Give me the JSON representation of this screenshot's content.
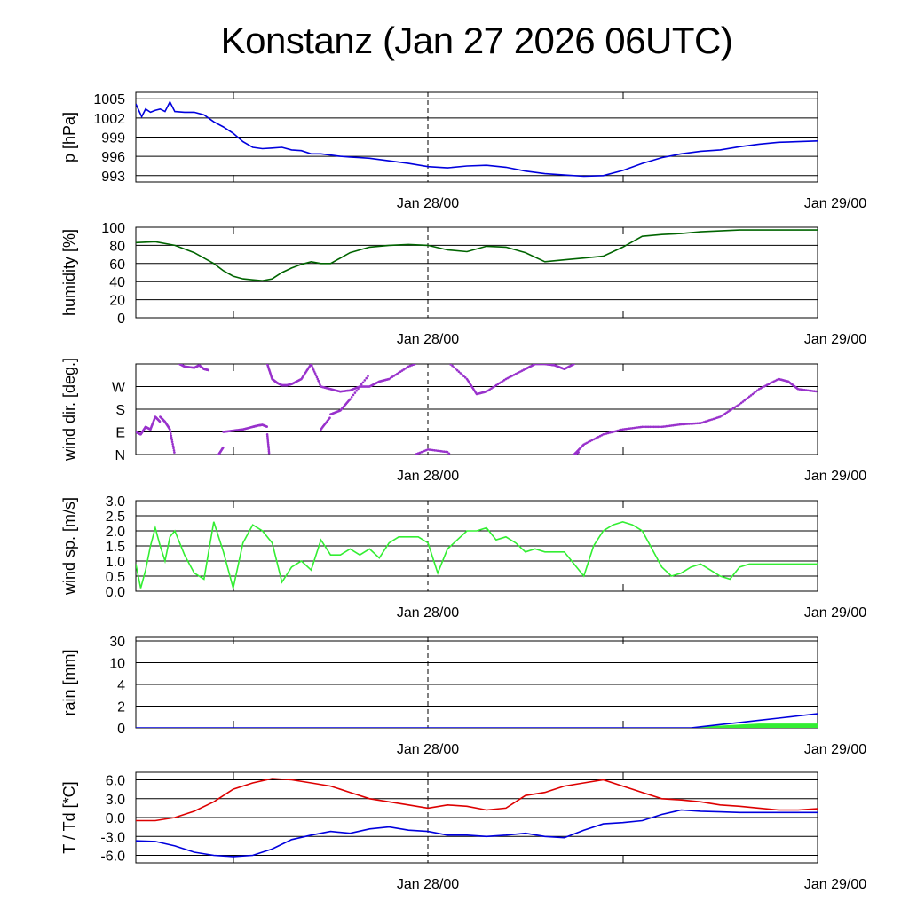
{
  "title": "Konstanz (Jan 27 2026 06UTC)",
  "chart_data": [
    {
      "type": "line",
      "name": "pressure",
      "ylabel": "p [hPa]",
      "ylim": [
        992,
        1006
      ],
      "yticks": [
        993,
        996,
        999,
        1002,
        1005
      ],
      "ytick_labels": [
        "993",
        "996",
        "999",
        "1002",
        "1005"
      ],
      "x_day_labels": [
        "Jan 28/00",
        "Jan 29/00"
      ],
      "x_hours": [
        0,
        0.3,
        0.6,
        1,
        1.5,
        2,
        2.5,
        3,
        3.5,
        4,
        5,
        6,
        7,
        8,
        9,
        10,
        11,
        12,
        13,
        14,
        15,
        16,
        17,
        18,
        19,
        20,
        21,
        22,
        23,
        24,
        26,
        28,
        30,
        32,
        34,
        36,
        38,
        40,
        42,
        44,
        46,
        48,
        50,
        52,
        54,
        56,
        58,
        60,
        62,
        64,
        66,
        68,
        70
      ],
      "series": [
        {
          "name": "p",
          "color": "#0000dd",
          "values": [
            1004.2,
            1003.2,
            1002.2,
            1003.4,
            1002.9,
            1003.2,
            1003.4,
            1003.0,
            1004.5,
            1003.0,
            1002.9,
            1002.9,
            1002.5,
            1001.4,
            1000.6,
            999.6,
            998.3,
            997.4,
            997.2,
            997.3,
            997.4,
            997.0,
            996.9,
            996.4,
            996.4,
            996.2,
            996.0,
            995.9,
            995.8,
            995.7,
            995.3,
            994.9,
            994.4,
            994.2,
            994.5,
            994.6,
            994.3,
            993.7,
            993.3,
            993.1,
            992.9,
            993.0,
            993.8,
            994.9,
            995.8,
            996.4,
            996.8,
            997.0,
            997.5,
            997.9,
            998.2,
            998.3,
            998.4
          ]
        }
      ]
    },
    {
      "type": "line",
      "name": "humidity",
      "ylabel": "humidity [%]",
      "ylim": [
        0,
        100
      ],
      "yticks": [
        0,
        20,
        40,
        60,
        80,
        100
      ],
      "ytick_labels": [
        "0",
        "20",
        "40",
        "60",
        "80",
        "100"
      ],
      "x_day_labels": [
        "Jan 28/00",
        "Jan 29/00"
      ],
      "x_hours": [
        0,
        2,
        4,
        6,
        8,
        9,
        10,
        11,
        12,
        13,
        14,
        15,
        16,
        17,
        18,
        19,
        20,
        22,
        24,
        26,
        28,
        30,
        32,
        34,
        36,
        38,
        40,
        42,
        44,
        46,
        48,
        50,
        52,
        54,
        56,
        58,
        60,
        62,
        64,
        66,
        68,
        70
      ],
      "series": [
        {
          "name": "rh",
          "color": "#006400",
          "values": [
            83,
            84,
            80,
            72,
            60,
            52,
            46,
            43,
            42,
            41,
            43,
            50,
            55,
            59,
            62,
            60,
            60,
            72,
            78,
            80,
            81,
            80,
            75,
            73,
            79,
            78,
            72,
            62,
            64,
            66,
            68,
            78,
            90,
            92,
            93,
            95,
            96,
            97,
            97,
            97,
            97,
            97
          ]
        }
      ]
    },
    {
      "type": "scatter",
      "name": "wind-direction",
      "ylabel": "wind dir. [deg.]",
      "ylim": [
        0,
        360
      ],
      "yticks": [
        0,
        90,
        180,
        270
      ],
      "ytick_labels": [
        "N",
        "E",
        "S",
        "W"
      ],
      "x_day_labels": [
        "Jan 28/00",
        "Jan 29/00"
      ],
      "segments": [
        {
          "x": [
            0,
            0.5,
            1,
            1.5,
            2,
            2.5
          ],
          "y": [
            90,
            80,
            110,
            100,
            150,
            130
          ]
        },
        {
          "x": [
            2.5,
            3,
            3.5,
            4
          ],
          "y": [
            150,
            130,
            100,
            0
          ]
        },
        {
          "x": [
            4.5,
            5,
            6,
            6.5,
            7,
            7.5
          ],
          "y": [
            360,
            350,
            345,
            355,
            340,
            335
          ]
        },
        {
          "x": [
            8.5,
            9
          ],
          "y": [
            0,
            30
          ]
        },
        {
          "x": [
            9,
            10,
            11,
            12,
            12.5,
            13,
            13.5
          ],
          "y": [
            90,
            95,
            100,
            110,
            115,
            118,
            110
          ]
        },
        {
          "x": [
            13.5,
            13.7
          ],
          "y": [
            80,
            0
          ]
        },
        {
          "x": [
            13.5,
            14,
            14.5,
            15,
            15.5,
            16,
            17,
            18,
            19,
            20,
            21,
            22,
            23,
            24,
            25,
            26,
            28,
            30,
            32,
            34,
            35,
            36,
            38,
            40,
            41,
            42,
            43,
            44,
            45,
            45.5
          ],
          "y": [
            360,
            300,
            285,
            275,
            275,
            280,
            300,
            360,
            270,
            260,
            250,
            255,
            270,
            270,
            290,
            300,
            350,
            380,
            370,
            300,
            240,
            250,
            300,
            340,
            360,
            360,
            355,
            340,
            360,
            370
          ]
        },
        {
          "x": [
            19,
            20
          ],
          "y": [
            100,
            150
          ]
        },
        {
          "x": [
            20,
            21,
            22,
            24
          ],
          "y": [
            160,
            175,
            220,
            320
          ]
        },
        {
          "x": [
            45,
            46,
            48,
            50,
            52,
            54,
            56,
            58,
            60,
            62,
            64,
            66,
            67,
            68,
            70
          ],
          "y": [
            0,
            40,
            80,
            100,
            110,
            110,
            120,
            125,
            150,
            200,
            260,
            300,
            290,
            260,
            250
          ]
        }
      ],
      "series": [
        {
          "name": "dd",
          "color": "#9932cc"
        }
      ]
    },
    {
      "type": "line",
      "name": "wind-speed",
      "ylabel": "wind sp. [m/s]",
      "ylim": [
        0,
        3
      ],
      "yticks": [
        0,
        0.5,
        1.0,
        1.5,
        2.0,
        2.5,
        3.0
      ],
      "ytick_labels": [
        "0.0",
        "0.5",
        "1.0",
        "1.5",
        "2.0",
        "2.5",
        "3.0"
      ],
      "x_day_labels": [
        "Jan 28/00",
        "Jan 29/00"
      ],
      "x_hours": [
        0,
        0.5,
        1,
        1.5,
        2,
        2.5,
        3,
        3.5,
        4,
        5,
        6,
        7,
        8,
        9,
        10,
        11,
        12,
        13,
        14,
        15,
        16,
        17,
        18,
        19,
        20,
        21,
        22,
        23,
        24,
        25,
        26,
        27,
        28,
        29,
        30,
        31,
        32,
        33,
        34,
        35,
        36,
        37,
        38,
        39,
        40,
        41,
        42,
        43,
        44,
        45,
        46,
        47,
        48,
        49,
        50,
        51,
        52,
        53,
        54,
        55,
        56,
        57,
        58,
        59,
        60,
        61,
        62,
        63,
        64,
        65,
        66,
        67,
        68,
        69,
        70
      ],
      "series": [
        {
          "name": "ff",
          "color": "#33ee33",
          "values": [
            0.9,
            0.1,
            0.7,
            1.5,
            2.1,
            1.5,
            1.0,
            1.8,
            2.0,
            1.2,
            0.6,
            0.4,
            2.3,
            1.3,
            0.1,
            1.6,
            2.2,
            2.0,
            1.6,
            0.3,
            0.8,
            1.0,
            0.7,
            1.7,
            1.2,
            1.2,
            1.4,
            1.2,
            1.4,
            1.1,
            1.6,
            1.8,
            1.8,
            1.8,
            1.6,
            0.6,
            1.4,
            1.7,
            2.0,
            2.0,
            2.1,
            1.7,
            1.8,
            1.6,
            1.3,
            1.4,
            1.3,
            1.3,
            1.3,
            0.9,
            0.5,
            1.5,
            2.0,
            2.2,
            2.3,
            2.2,
            2.0,
            1.4,
            0.8,
            0.5,
            0.6,
            0.8,
            0.9,
            0.7,
            0.5,
            0.4,
            0.8,
            0.9,
            0.9,
            0.9,
            0.9,
            0.9,
            0.9,
            0.9,
            0.9
          ]
        }
      ]
    },
    {
      "type": "area",
      "name": "rain",
      "ylabel": "rain [mm]",
      "ylim": [
        0,
        30
      ],
      "yticks": [
        0,
        2,
        4,
        10,
        30
      ],
      "ytick_labels": [
        "0",
        "2",
        "4",
        "10",
        "30"
      ],
      "x_day_labels": [
        "Jan 28/00",
        "Jan 29/00"
      ],
      "x_hours": [
        0,
        57,
        58,
        60,
        62,
        64,
        66,
        68,
        70
      ],
      "series": [
        {
          "name": "accumulated",
          "color": "#0000dd",
          "values": [
            0,
            0,
            0.1,
            0.3,
            0.5,
            0.7,
            0.9,
            1.1,
            1.3
          ]
        },
        {
          "name": "period",
          "color": "#33ee33",
          "values": [
            0,
            0,
            0.1,
            0.2,
            0.3,
            0.4,
            0.4,
            0.4,
            0.4
          ]
        }
      ]
    },
    {
      "type": "line",
      "name": "temperature",
      "ylabel": "T / Td [*C]",
      "ylim": [
        -7.2,
        7.2
      ],
      "yticks": [
        -6,
        -3,
        0,
        3,
        6
      ],
      "ytick_labels": [
        "-6.0",
        "-3.0",
        "0.0",
        "3.0",
        "6.0"
      ],
      "x_day_labels": [
        "Jan 28/00",
        "Jan 29/00"
      ],
      "x_hours": [
        0,
        2,
        4,
        6,
        8,
        10,
        12,
        14,
        16,
        18,
        20,
        22,
        24,
        26,
        28,
        30,
        32,
        34,
        36,
        38,
        40,
        42,
        44,
        46,
        48,
        50,
        52,
        54,
        56,
        58,
        60,
        62,
        64,
        66,
        68,
        70
      ],
      "series": [
        {
          "name": "T",
          "color": "#dd0000",
          "values": [
            -0.5,
            -0.5,
            0,
            1.0,
            2.5,
            4.5,
            5.5,
            6.2,
            6.0,
            5.5,
            5.0,
            4.0,
            3.0,
            2.5,
            2.0,
            1.5,
            2.0,
            1.8,
            1.2,
            1.5,
            3.5,
            4.0,
            5.0,
            5.5,
            6.0,
            5.0,
            4.0,
            3.0,
            2.8,
            2.5,
            2.0,
            1.8,
            1.5,
            1.2,
            1.2,
            1.4
          ]
        },
        {
          "name": "Td",
          "color": "#0000dd",
          "values": [
            -3.7,
            -3.8,
            -4.5,
            -5.5,
            -6.0,
            -6.2,
            -6.0,
            -5.0,
            -3.5,
            -2.8,
            -2.2,
            -2.5,
            -1.8,
            -1.5,
            -2.0,
            -2.2,
            -2.8,
            -2.8,
            -3.0,
            -2.8,
            -2.5,
            -3.0,
            -3.2,
            -2.0,
            -1.0,
            -0.8,
            -0.5,
            0.5,
            1.2,
            1.0,
            0.9,
            0.8,
            0.8,
            0.8,
            0.8,
            0.8
          ]
        }
      ]
    }
  ]
}
